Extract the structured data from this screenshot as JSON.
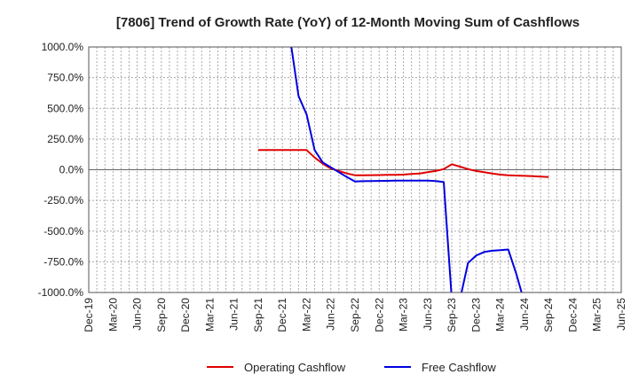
{
  "chart_data": {
    "type": "line",
    "title": "[7806]  Trend of Growth Rate (YoY) of 12-Month Moving Sum of Cashflows",
    "xlabel": "",
    "ylabel": "",
    "ylim": [
      -1000,
      1000
    ],
    "yticks": [
      "1000.0%",
      "750.0%",
      "500.0%",
      "250.0%",
      "0.0%",
      "-250.0%",
      "-500.0%",
      "-750.0%",
      "-1000.0%"
    ],
    "xticks": [
      "Dec-19",
      "Mar-20",
      "Jun-20",
      "Sep-20",
      "Dec-20",
      "Mar-21",
      "Jun-21",
      "Sep-21",
      "Dec-21",
      "Mar-22",
      "Jun-22",
      "Sep-22",
      "Dec-22",
      "Mar-23",
      "Jun-23",
      "Sep-23",
      "Dec-23",
      "Mar-24",
      "Jun-24",
      "Sep-24",
      "Dec-24",
      "Mar-25",
      "Jun-25"
    ],
    "grid": true,
    "legend_position": "bottom-center",
    "x": [
      "Sep-21",
      "Oct-21",
      "Nov-21",
      "Dec-21",
      "Jan-22",
      "Feb-22",
      "Mar-22",
      "Apr-22",
      "May-22",
      "Jun-22",
      "Jul-22",
      "Aug-22",
      "Sep-22",
      "Oct-22",
      "Nov-22",
      "Dec-22",
      "Jan-23",
      "Feb-23",
      "Mar-23",
      "Apr-23",
      "May-23",
      "Jun-23",
      "Jul-23",
      "Aug-23",
      "Sep-23",
      "Oct-23",
      "Nov-23",
      "Dec-23",
      "Jan-24",
      "Feb-24",
      "Mar-24",
      "Apr-24",
      "May-24",
      "Jun-24",
      "Jul-24",
      "Aug-24",
      "Sep-24"
    ],
    "series": [
      {
        "name": "Operating Cashflow",
        "color": "#e00000",
        "values": [
          160,
          160,
          160,
          160,
          160,
          160,
          160,
          100,
          50,
          10,
          -10,
          -30,
          -45,
          -45,
          -44,
          -43,
          -42,
          -41,
          -40,
          -35,
          -30,
          -20,
          -10,
          5,
          45,
          25,
          5,
          -10,
          -20,
          -30,
          -40,
          -45,
          -48,
          -50,
          -53,
          -56,
          -60
        ]
      },
      {
        "name": "Free Cashflow",
        "color": "#0000e0",
        "values": [
          null,
          null,
          null,
          null,
          1050,
          600,
          450,
          160,
          60,
          20,
          -20,
          -60,
          -95,
          -93,
          -92,
          -91,
          -90,
          -89,
          -88,
          -88,
          -88,
          -88,
          -92,
          -100,
          -1060,
          -1060,
          -760,
          -700,
          -670,
          -660,
          -655,
          -650,
          -850,
          -1080,
          null,
          null,
          null
        ]
      }
    ]
  }
}
